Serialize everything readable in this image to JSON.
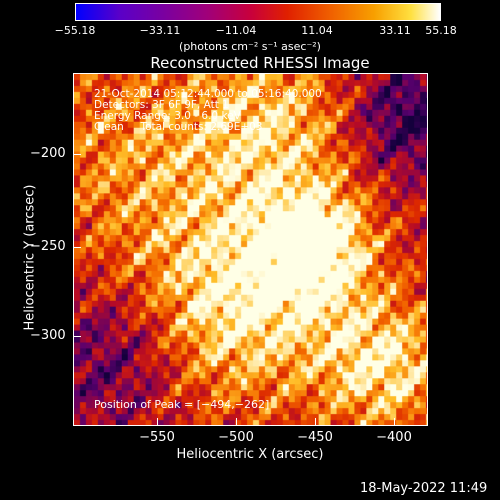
{
  "colorbar": {
    "tick_labels": [
      "−55.18",
      "−33.11",
      "−11.04",
      "11.04",
      "33.11",
      "55.18"
    ],
    "units": "(photons cm⁻² s⁻¹ asec⁻²)"
  },
  "title": "Reconstructed RHESSI Image",
  "info": {
    "line1": "21-Oct-2014 05:12:44.000 to 05:16:40.000",
    "line2": "Detectors: 3F 6F 9F, Att 1",
    "line3": "Energy Range: 3.0 - 6.0 keV",
    "line4": "Clean     Total counts: 2.69E+03"
  },
  "peak_label": "Position of Peak = [−494,−262]",
  "x_axis": {
    "label": "Heliocentric X (arcsec)",
    "tick_labels": [
      "−550",
      "−500",
      "−450",
      "−400"
    ]
  },
  "y_axis": {
    "label": "Heliocentric Y (arcsec)",
    "tick_labels": [
      "−200",
      "−250",
      "−300"
    ]
  },
  "timestamp": "18-May-2022 11:49"
}
